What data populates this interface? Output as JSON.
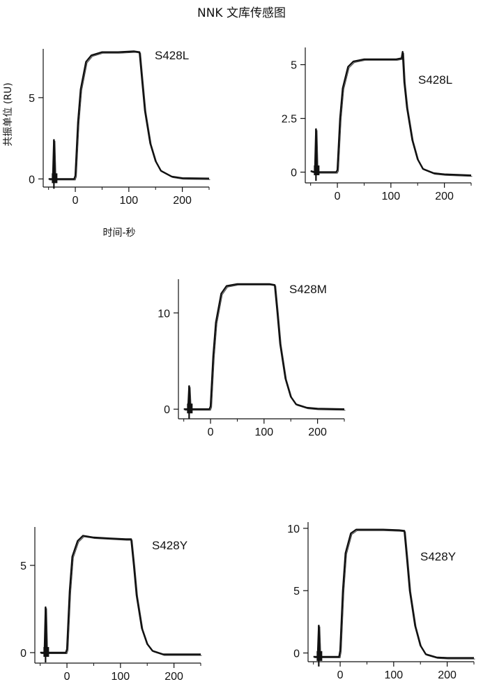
{
  "figure": {
    "title": "NNK 文库传感图"
  },
  "chart_data": [
    {
      "type": "line",
      "label": "S428L",
      "ylabel": "共振单位 (RU)",
      "xlabel": "时间-秒",
      "xlim": [
        -60,
        250
      ],
      "ylim": [
        -0.5,
        8
      ],
      "xticks": [
        0,
        100,
        200
      ],
      "yticks": [
        0,
        5
      ],
      "plateau": 7.8,
      "baseline_end": 0.0,
      "spike": 2.4,
      "series": [
        {
          "x": [
            -50,
            -42,
            -40,
            -38,
            -2,
            0,
            5,
            10,
            20,
            30,
            50,
            80,
            110,
            120,
            125,
            130,
            140,
            150,
            160,
            180,
            200,
            250
          ],
          "y": [
            0,
            0,
            2.4,
            0,
            0,
            0.2,
            3.5,
            5.5,
            7.2,
            7.6,
            7.8,
            7.8,
            7.85,
            7.8,
            6.0,
            4.2,
            2.2,
            1.1,
            0.5,
            0.15,
            0.05,
            0.03
          ]
        }
      ]
    },
    {
      "type": "line",
      "label": "S428L",
      "xlabel": "",
      "ylabel": "",
      "xlim": [
        -60,
        250
      ],
      "ylim": [
        -0.5,
        5.8
      ],
      "xticks": [
        0,
        100,
        200
      ],
      "yticks": [
        0,
        2.5,
        5
      ],
      "plateau": 5.25,
      "baseline_end": -0.15,
      "spike": 2.0,
      "series": [
        {
          "x": [
            -50,
            -42,
            -40,
            -38,
            -2,
            0,
            5,
            10,
            20,
            30,
            50,
            80,
            110,
            120,
            122,
            125,
            130,
            140,
            150,
            160,
            180,
            200,
            250
          ],
          "y": [
            0.05,
            0,
            2.0,
            0,
            0,
            0.1,
            2.5,
            3.9,
            4.9,
            5.15,
            5.25,
            5.25,
            5.25,
            5.3,
            5.6,
            4.2,
            3.0,
            1.5,
            0.6,
            0.15,
            -0.05,
            -0.1,
            -0.15
          ]
        }
      ]
    },
    {
      "type": "line",
      "label": "S428M",
      "xlabel": "",
      "ylabel": "",
      "xlim": [
        -60,
        250
      ],
      "ylim": [
        -1,
        13.5
      ],
      "xticks": [
        0,
        100,
        200
      ],
      "yticks": [
        0,
        10
      ],
      "plateau": 13.0,
      "baseline_end": 0.0,
      "spike": 2.4,
      "series": [
        {
          "x": [
            -50,
            -42,
            -40,
            -38,
            -2,
            0,
            5,
            10,
            20,
            30,
            50,
            80,
            110,
            120,
            125,
            130,
            140,
            150,
            160,
            180,
            200,
            250
          ],
          "y": [
            0,
            0,
            2.4,
            0,
            0,
            0.3,
            5.5,
            9.0,
            12.0,
            12.8,
            13.0,
            13.0,
            13.0,
            12.9,
            10.0,
            6.8,
            3.2,
            1.3,
            0.5,
            0.15,
            0.05,
            0.0
          ]
        }
      ]
    },
    {
      "type": "line",
      "label": "S428Y",
      "xlabel": "",
      "ylabel": "",
      "xlim": [
        -60,
        250
      ],
      "ylim": [
        -0.6,
        7.2
      ],
      "xticks": [
        0,
        100,
        200
      ],
      "yticks": [
        0,
        5
      ],
      "plateau": 6.5,
      "baseline_end": -0.1,
      "spike": 2.6,
      "series": [
        {
          "x": [
            -50,
            -42,
            -40,
            -38,
            -2,
            0,
            5,
            10,
            20,
            30,
            50,
            80,
            110,
            120,
            125,
            130,
            140,
            150,
            160,
            180,
            200,
            250
          ],
          "y": [
            0,
            0,
            2.6,
            0,
            0,
            0.2,
            3.5,
            5.5,
            6.4,
            6.7,
            6.6,
            6.55,
            6.5,
            6.5,
            5.0,
            3.3,
            1.4,
            0.5,
            0.1,
            -0.1,
            -0.1,
            -0.1
          ]
        }
      ]
    },
    {
      "type": "line",
      "label": "S428Y",
      "xlabel": "",
      "ylabel": "",
      "xlim": [
        -60,
        250
      ],
      "ylim": [
        -0.7,
        10.5
      ],
      "xticks": [
        0,
        100,
        200
      ],
      "yticks": [
        0,
        5,
        10
      ],
      "plateau": 9.9,
      "baseline_end": -0.4,
      "spike": 2.2,
      "series": [
        {
          "x": [
            -50,
            -42,
            -40,
            -38,
            -2,
            0,
            5,
            10,
            20,
            30,
            50,
            80,
            110,
            120,
            125,
            130,
            140,
            150,
            160,
            180,
            200,
            250
          ],
          "y": [
            -0.3,
            -0.3,
            2.2,
            -0.3,
            -0.3,
            0.2,
            5.0,
            8.0,
            9.6,
            9.9,
            9.9,
            9.9,
            9.85,
            9.8,
            7.5,
            5.0,
            2.2,
            0.6,
            -0.1,
            -0.35,
            -0.4,
            -0.4
          ]
        }
      ]
    }
  ]
}
